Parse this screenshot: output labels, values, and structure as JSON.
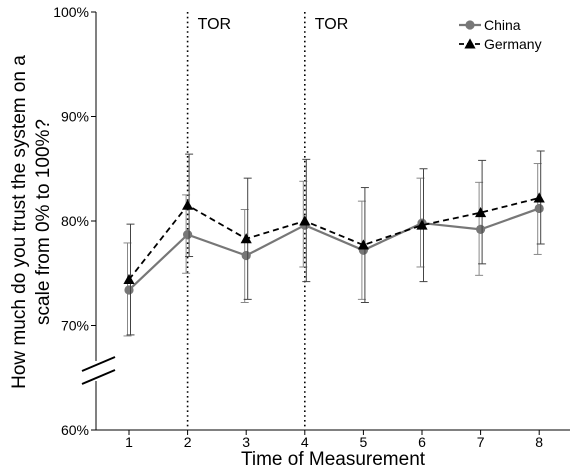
{
  "chart_data": {
    "type": "line",
    "x_categories": [
      "1",
      "2",
      "3",
      "4",
      "5",
      "6",
      "7",
      "8"
    ],
    "xlabel": "Time of Measurement",
    "ylabel_line1": "How much do you trust the system on a",
    "ylabel_line2": "scale from 0% to 100%?",
    "ylim": [
      60,
      100
    ],
    "y_axis_break": true,
    "y_ticks": [
      {
        "value": 60,
        "label": "60%"
      },
      {
        "value": 70,
        "label": "70%"
      },
      {
        "value": 80,
        "label": "80%"
      },
      {
        "value": 90,
        "label": "90%"
      },
      {
        "value": 100,
        "label": "100%"
      }
    ],
    "vertical_markers": [
      {
        "x": "2",
        "label": "TOR"
      },
      {
        "x": "4",
        "label": "TOR"
      }
    ],
    "legend_position": "top-right",
    "grid": false,
    "series": [
      {
        "name": "China",
        "marker": "circle",
        "line_style": "solid",
        "color": "#777777",
        "values": [
          73.4,
          78.7,
          76.7,
          79.6,
          77.2,
          79.8,
          79.2,
          81.2
        ],
        "error_low": [
          69.0,
          75.0,
          72.2,
          75.6,
          72.5,
          75.6,
          74.8,
          76.8
        ],
        "error_high": [
          77.9,
          82.5,
          81.1,
          83.8,
          81.9,
          84.1,
          83.7,
          85.5
        ]
      },
      {
        "name": "Germany",
        "marker": "triangle",
        "line_style": "dashed",
        "color": "#000000",
        "values": [
          74.4,
          81.5,
          78.3,
          80.0,
          77.7,
          79.6,
          80.8,
          82.2
        ],
        "error_low": [
          69.1,
          76.6,
          72.5,
          74.2,
          72.2,
          74.2,
          75.9,
          77.8
        ],
        "error_high": [
          79.7,
          86.4,
          84.1,
          85.9,
          83.2,
          85.0,
          85.8,
          86.7
        ]
      }
    ]
  }
}
